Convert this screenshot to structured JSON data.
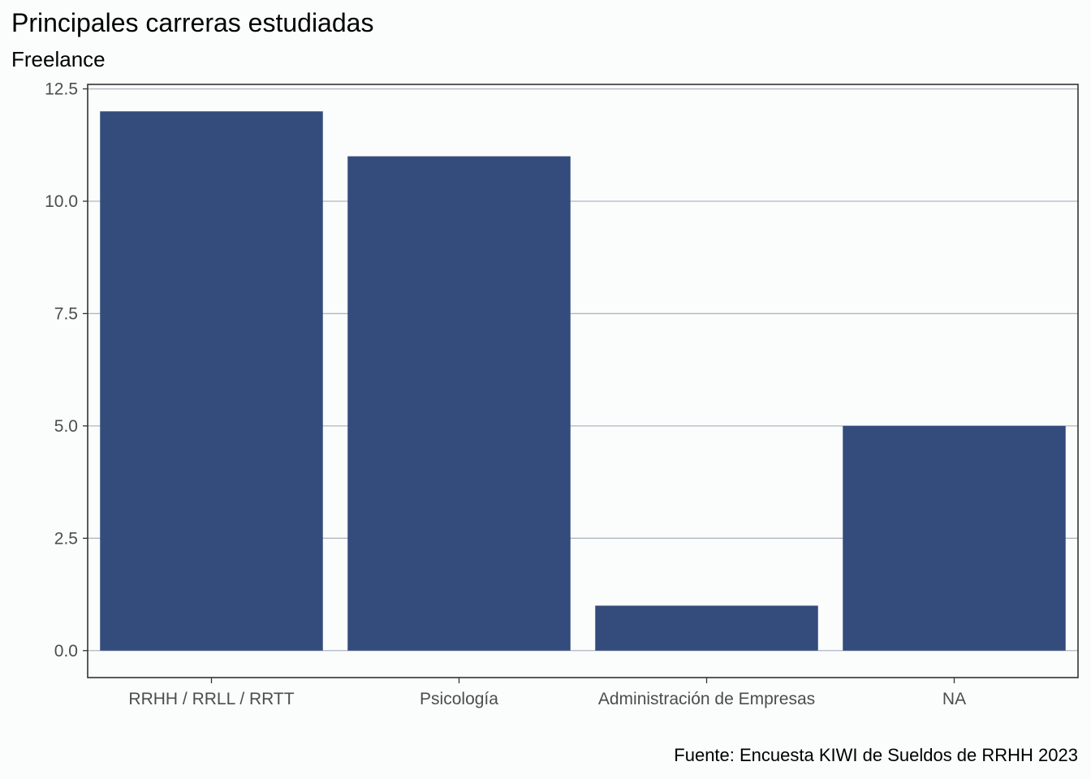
{
  "chart_data": {
    "type": "bar",
    "title": "Principales carreras estudiadas",
    "subtitle": "Freelance",
    "caption": "Fuente: Encuesta KIWI de Sueldos de RRHH 2023",
    "xlabel": "",
    "ylabel": "",
    "categories": [
      "RRHH / RRLL / RRTT",
      "Psicología",
      "Administración de Empresas",
      "NA"
    ],
    "values": [
      12,
      11,
      1,
      5
    ],
    "ylim": [
      -0.6,
      12.6
    ],
    "yticks": [
      0,
      2.5,
      5,
      7.5,
      10,
      12.5
    ],
    "ytick_labels": [
      "0.0",
      "2.5",
      "5.0",
      "7.5",
      "10.0",
      "12.5"
    ],
    "grid": "horizontal",
    "legend": "none",
    "colors": {
      "bar": "#344C7C",
      "grid": "#AEB7C2",
      "panel_border": "#333333",
      "background": "#FBFCFC"
    }
  }
}
